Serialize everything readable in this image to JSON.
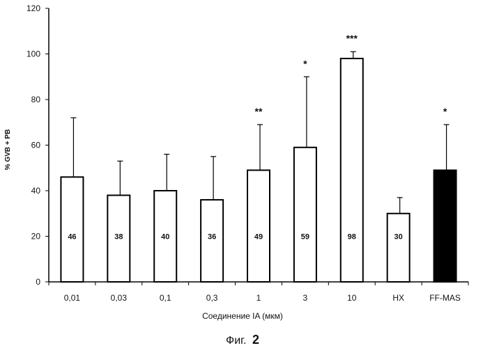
{
  "chart_data": {
    "type": "bar",
    "categories": [
      "0,01",
      "0,03",
      "0,1",
      "0,3",
      "1",
      "3",
      "10",
      "HX",
      "FF-MAS"
    ],
    "values": [
      46,
      38,
      40,
      36,
      49,
      59,
      98,
      30,
      49
    ],
    "errors_upper": [
      72,
      53,
      56,
      55,
      69,
      90,
      101,
      37,
      69
    ],
    "bar_labels": [
      "46",
      "38",
      "40",
      "36",
      "49",
      "59",
      "98",
      "30",
      ""
    ],
    "significance": [
      "",
      "",
      "",
      "",
      "**",
      "*",
      "***",
      "",
      "*"
    ],
    "filled": [
      false,
      false,
      false,
      false,
      false,
      false,
      false,
      false,
      true
    ],
    "ylim": [
      0,
      120
    ],
    "yticks": [
      "0",
      "20",
      "40",
      "60",
      "80",
      "100",
      "120"
    ],
    "ylabel": "% GVB + PB",
    "xlabel": "Соединение IA (мкм)",
    "colors": {
      "bar_fill": "#ffffff",
      "bar_filled": "#000000",
      "stroke": "#000000"
    }
  },
  "caption": {
    "prefix": "Фиг.",
    "number": "2"
  }
}
